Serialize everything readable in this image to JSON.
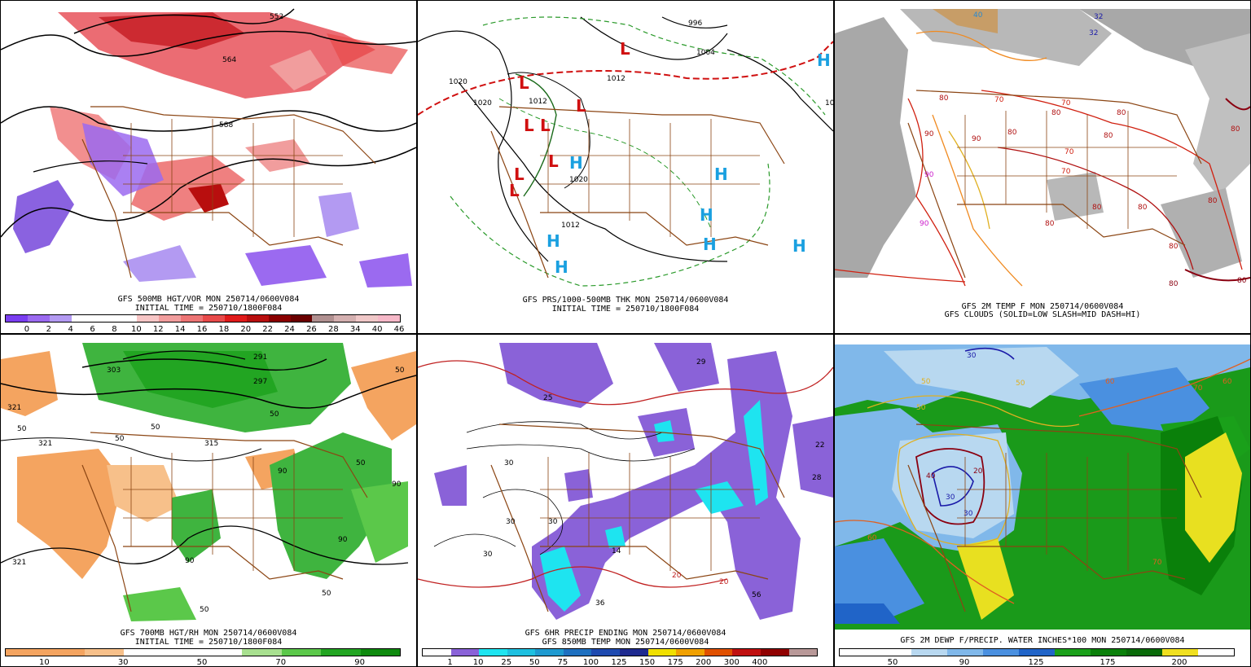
{
  "panels": {
    "p1": {
      "title": "GFS 500MB HGT/VOR MON 250714/0600V084",
      "subtitle": "INITIAL TIME = 250710/1800F084",
      "colorbar": {
        "colors": [
          "#7a3ef0",
          "#9b6af0",
          "#b39af2",
          "#ffffff",
          "#ffffff",
          "#ffffff",
          "#f7c6c6",
          "#f19d9d",
          "#ec7474",
          "#e84a4a",
          "#e01a1a",
          "#b80e0e",
          "#8a0000",
          "#6a0000",
          "#b09090",
          "#d4b0b0",
          "#f0c8c8",
          "#f6b8c8"
        ],
        "labels": [
          "0",
          "2",
          "4",
          "6",
          "8",
          "10",
          "12",
          "14",
          "16",
          "18",
          "20",
          "22",
          "24",
          "26",
          "28",
          "34",
          "40",
          "46"
        ]
      },
      "contour_labels": [
        "552",
        "564",
        "588"
      ]
    },
    "p2": {
      "title": "GFS PRS/1000-500MB THK MON 250714/0600V084",
      "subtitle": "INITIAL TIME = 250710/1800F084",
      "contour_labels": [
        "1020",
        "1020",
        "1012",
        "1012",
        "1004",
        "996",
        "1012",
        "1020",
        "102"
      ],
      "lows": [
        "L",
        "L",
        "L",
        "L",
        "L",
        "L",
        "L",
        "L"
      ],
      "highs": [
        "H",
        "H",
        "H",
        "H",
        "H",
        "H",
        "H",
        "H",
        "H"
      ]
    },
    "p3": {
      "title": "GFS 2M TEMP F MON 250714/0600V084",
      "subtitle": "GFS CLOUDS (SOLID=LOW SLASH=MID DASH=HI)",
      "contour_labels": [
        "40",
        "32",
        "32",
        "80",
        "70",
        "70",
        "80",
        "90",
        "80",
        "90",
        "70",
        "80",
        "80",
        "70",
        "80",
        "80",
        "80",
        "80",
        "80",
        "90",
        "90",
        "80",
        "80",
        "80"
      ]
    },
    "p4": {
      "title": "GFS 700MB HGT/RH MON 250714/0600V084",
      "subtitle": "INITIAL TIME = 250710/1800F084",
      "colorbar": {
        "colors": [
          "#f4a460",
          "#f4a460",
          "#f7c08a",
          "#ffffff",
          "#ffffff",
          "#ffffff",
          "#a8e090",
          "#5bc84a",
          "#22a522",
          "#0e8a0e"
        ],
        "labels": [
          "10",
          "30",
          "50",
          "70",
          "90"
        ]
      },
      "contour_labels": [
        "50",
        "321",
        "50",
        "321",
        "50",
        "303",
        "297",
        "291",
        "50",
        "50",
        "315",
        "90",
        "90",
        "90",
        "50",
        "50",
        "50",
        "90",
        "321"
      ]
    },
    "p5": {
      "title": "GFS 6HR PRECIP ENDING MON 250714/0600V084",
      "subtitle": "GFS 850MB TEMP MON 250714/0600V084",
      "colorbar": {
        "colors": [
          "#ffffff",
          "#8a62d8",
          "#1ee4f0",
          "#1ec0e0",
          "#1e9ad0",
          "#1e70c0",
          "#1e4ab0",
          "#1e2a90",
          "#f0e000",
          "#f0a000",
          "#e05000",
          "#c01010",
          "#900000",
          "#b89898"
        ],
        "labels": [
          "1",
          "10",
          "25",
          "50",
          "75",
          "100",
          "125",
          "150",
          "175",
          "200",
          "300",
          "400"
        ]
      },
      "contour_labels": [
        "29",
        "25",
        "22",
        "28",
        "30",
        "30",
        "14",
        "36",
        "56",
        "20",
        "20",
        "30",
        "30"
      ]
    },
    "p6": {
      "title": "GFS 2M DEWP F/PRECIP. WATER INCHES*100 MON 250714/0600V084",
      "colorbar": {
        "colors": [
          "#ffffff",
          "#ffffff",
          "#b8d8f0",
          "#80b8ea",
          "#4a90e0",
          "#2064c8",
          "#1aa01a",
          "#0a800a",
          "#096a09",
          "#f0e020",
          "#ffffff"
        ],
        "labels": [
          "50",
          "90",
          "125",
          "175",
          "200"
        ]
      },
      "contour_labels": [
        "50",
        "50",
        "60",
        "70",
        "60",
        "40",
        "30",
        "30",
        "20",
        "30",
        "50",
        "60",
        "70"
      ]
    }
  }
}
